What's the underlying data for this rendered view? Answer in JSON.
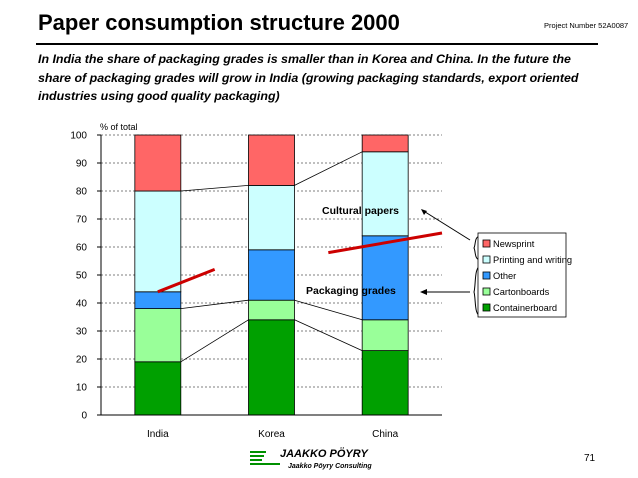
{
  "header": {
    "title": "Paper consumption structure 2000",
    "project_number": "Project Number 52A0087",
    "subtitle": "In India the share of packaging grades is smaller than in Korea and China. In the future the share of packaging grades will grow in India (growing packaging standards, export oriented industries using good quality packaging)"
  },
  "chart_data": {
    "type": "bar",
    "stacked": true,
    "ylabel": "% of total",
    "ylim": [
      0,
      100
    ],
    "yticks": [
      0,
      10,
      20,
      30,
      40,
      50,
      60,
      70,
      80,
      90,
      100
    ],
    "grid": true,
    "categories": [
      "India",
      "Korea",
      "China"
    ],
    "series": [
      {
        "name": "Containerboard",
        "color": "#00a000",
        "values": [
          19,
          34,
          23
        ]
      },
      {
        "name": "Cartonboards",
        "color": "#99ff99",
        "values": [
          19,
          7,
          11
        ]
      },
      {
        "name": "Other",
        "color": "#3399ff",
        "values": [
          6,
          18,
          30
        ]
      },
      {
        "name": "Printing and writing",
        "color": "#ccffff",
        "values": [
          36,
          23,
          30
        ]
      },
      {
        "name": "Newsprint",
        "color": "#ff6666",
        "values": [
          20,
          18,
          6
        ]
      }
    ],
    "legend_order": [
      "Newsprint",
      "Printing and writing",
      "Other",
      "Cartonboards",
      "Containerboard"
    ],
    "annotations": [
      {
        "text": "Cultural papers",
        "target": "Newsprint + Printing and writing"
      },
      {
        "text": "Packaging grades",
        "target": "Other + Cartonboards + Containerboard"
      }
    ],
    "trend_line": {
      "color": "#cc0000",
      "segments": [
        [
          [
            0.0,
            44
          ],
          [
            0.5,
            52
          ]
        ],
        [
          [
            1.5,
            58
          ],
          [
            2.5,
            65
          ]
        ]
      ]
    }
  },
  "footer": {
    "logo_text": "JAAKKO PÖYRY",
    "logo_subtext": "Jaakko Pöyry Consulting",
    "page_number": "71"
  }
}
